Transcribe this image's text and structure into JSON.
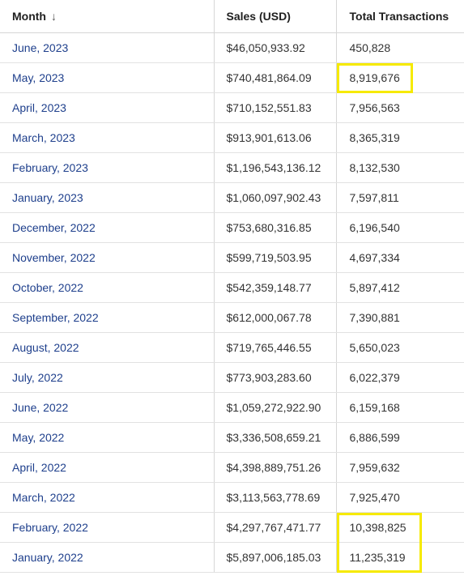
{
  "table": {
    "headers": {
      "month": "Month",
      "sales": "Sales (USD)",
      "transactions": "Total Transactions"
    },
    "sort_indicator": "↓",
    "rows": [
      {
        "month": "June, 2023",
        "sales": "$46,050,933.92",
        "transactions": "450,828"
      },
      {
        "month": "May, 2023",
        "sales": "$740,481,864.09",
        "transactions": "8,919,676"
      },
      {
        "month": "April, 2023",
        "sales": "$710,152,551.83",
        "transactions": "7,956,563"
      },
      {
        "month": "March, 2023",
        "sales": "$913,901,613.06",
        "transactions": "8,365,319"
      },
      {
        "month": "February, 2023",
        "sales": "$1,196,543,136.12",
        "transactions": "8,132,530"
      },
      {
        "month": "January, 2023",
        "sales": "$1,060,097,902.43",
        "transactions": "7,597,811"
      },
      {
        "month": "December, 2022",
        "sales": "$753,680,316.85",
        "transactions": "6,196,540"
      },
      {
        "month": "November, 2022",
        "sales": "$599,719,503.95",
        "transactions": "4,697,334"
      },
      {
        "month": "October, 2022",
        "sales": "$542,359,148.77",
        "transactions": "5,897,412"
      },
      {
        "month": "September, 2022",
        "sales": "$612,000,067.78",
        "transactions": "7,390,881"
      },
      {
        "month": "August, 2022",
        "sales": "$719,765,446.55",
        "transactions": "5,650,023"
      },
      {
        "month": "July, 2022",
        "sales": "$773,903,283.60",
        "transactions": "6,022,379"
      },
      {
        "month": "June, 2022",
        "sales": "$1,059,272,922.90",
        "transactions": "6,159,168"
      },
      {
        "month": "May, 2022",
        "sales": "$3,336,508,659.21",
        "transactions": "6,886,599"
      },
      {
        "month": "April, 2022",
        "sales": "$4,398,889,751.26",
        "transactions": "7,959,632"
      },
      {
        "month": "March, 2022",
        "sales": "$3,113,563,778.69",
        "transactions": "7,925,470"
      },
      {
        "month": "February, 2022",
        "sales": "$4,297,767,471.77",
        "transactions": "10,398,825"
      },
      {
        "month": "January, 2022",
        "sales": "$5,897,006,185.03",
        "transactions": "11,235,319"
      }
    ]
  },
  "colors": {
    "month_text": "#1e3f8c",
    "highlight_box": "#f6ea00"
  }
}
